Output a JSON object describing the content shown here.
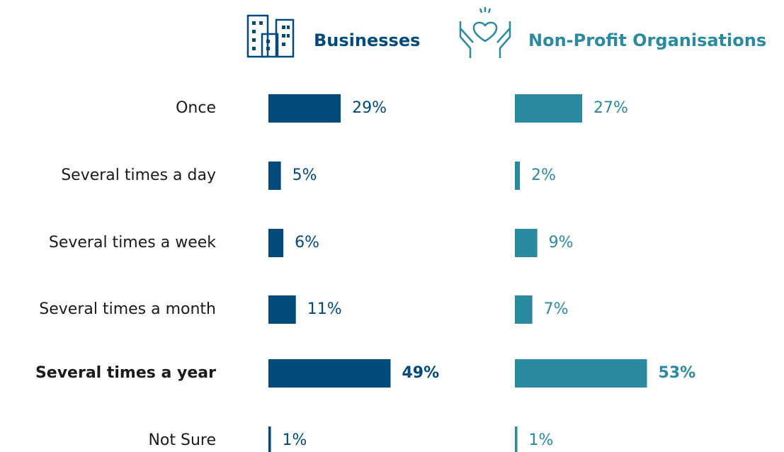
{
  "chart_data": {
    "type": "bar",
    "orientation": "horizontal",
    "categories": [
      "Once",
      "Several times a day",
      "Several times a week",
      "Several times a month",
      "Several times a year",
      "Not Sure"
    ],
    "series": [
      {
        "name": "Businesses",
        "color": "#004a7c",
        "values": [
          29,
          5,
          6,
          11,
          49,
          1
        ],
        "value_labels": [
          "29%",
          "5%",
          "6%",
          "11%",
          "49%",
          "1%"
        ]
      },
      {
        "name": "Non-Profit Organisations",
        "color": "#2a8aa0",
        "values": [
          27,
          2,
          9,
          7,
          53,
          1
        ],
        "value_labels": [
          "27%",
          "2%",
          "9%",
          "7%",
          "53%",
          "1%"
        ]
      }
    ],
    "xlim": [
      0,
      100
    ]
  }
}
